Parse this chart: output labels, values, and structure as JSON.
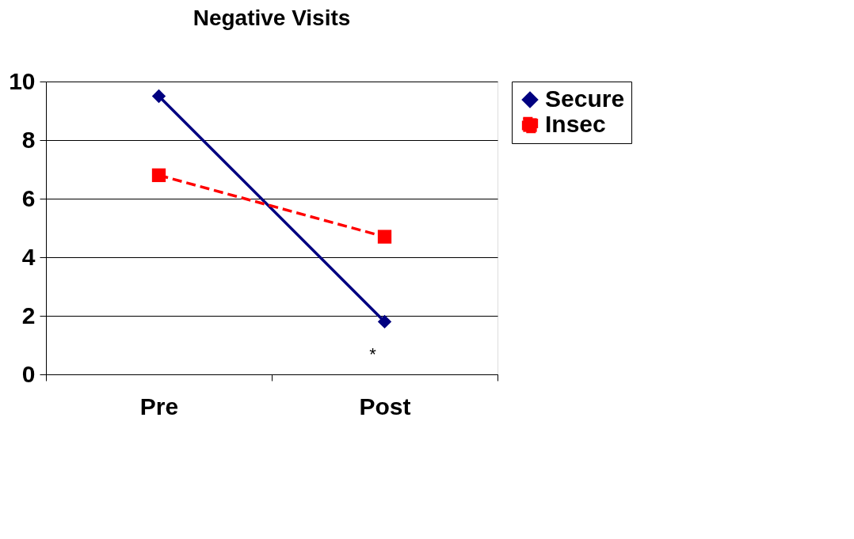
{
  "chart_data": {
    "type": "line",
    "title": "Negative Visits",
    "categories": [
      "Pre",
      "Post"
    ],
    "series": [
      {
        "name": "Secure",
        "color": "#000080",
        "values": [
          9.5,
          1.8
        ],
        "marker": "diamond",
        "line_style": "solid"
      },
      {
        "name": "Insec",
        "color": "#ff0000",
        "values": [
          6.8,
          4.7
        ],
        "marker": "square",
        "line_style": "dashed"
      }
    ],
    "ylim": [
      0,
      10
    ],
    "yticks": [
      0,
      2,
      4,
      6,
      8,
      10
    ],
    "grid": "y",
    "legend": "right",
    "annotations": [
      "*"
    ]
  }
}
